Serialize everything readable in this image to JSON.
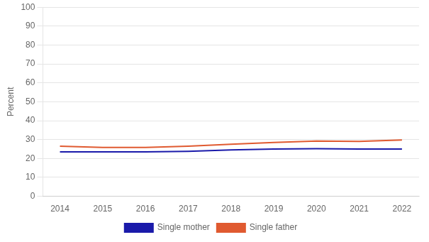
{
  "chart_data": {
    "type": "line",
    "ylabel": "Percent",
    "x": [
      2014,
      2015,
      2016,
      2017,
      2018,
      2019,
      2020,
      2021,
      2022
    ],
    "series": [
      {
        "name": "Single mother",
        "color": "#1a1aaa",
        "values": [
          23.5,
          23.5,
          23.5,
          23.8,
          24.5,
          25.0,
          25.2,
          25.0,
          25.0
        ]
      },
      {
        "name": "Single father",
        "color": "#e05a30",
        "values": [
          26.5,
          25.8,
          25.8,
          26.5,
          27.5,
          28.5,
          29.2,
          29.0,
          29.8
        ]
      }
    ],
    "xlim": [
      2013.6,
      2022.4
    ],
    "xticks": [
      2014,
      2015,
      2016,
      2017,
      2018,
      2019,
      2020,
      2021,
      2022
    ],
    "ylim": [
      0,
      100
    ],
    "yticks": [
      0,
      10,
      20,
      30,
      40,
      50,
      60,
      70,
      80,
      90,
      100
    ],
    "grid": "y",
    "legend": "bottom"
  }
}
